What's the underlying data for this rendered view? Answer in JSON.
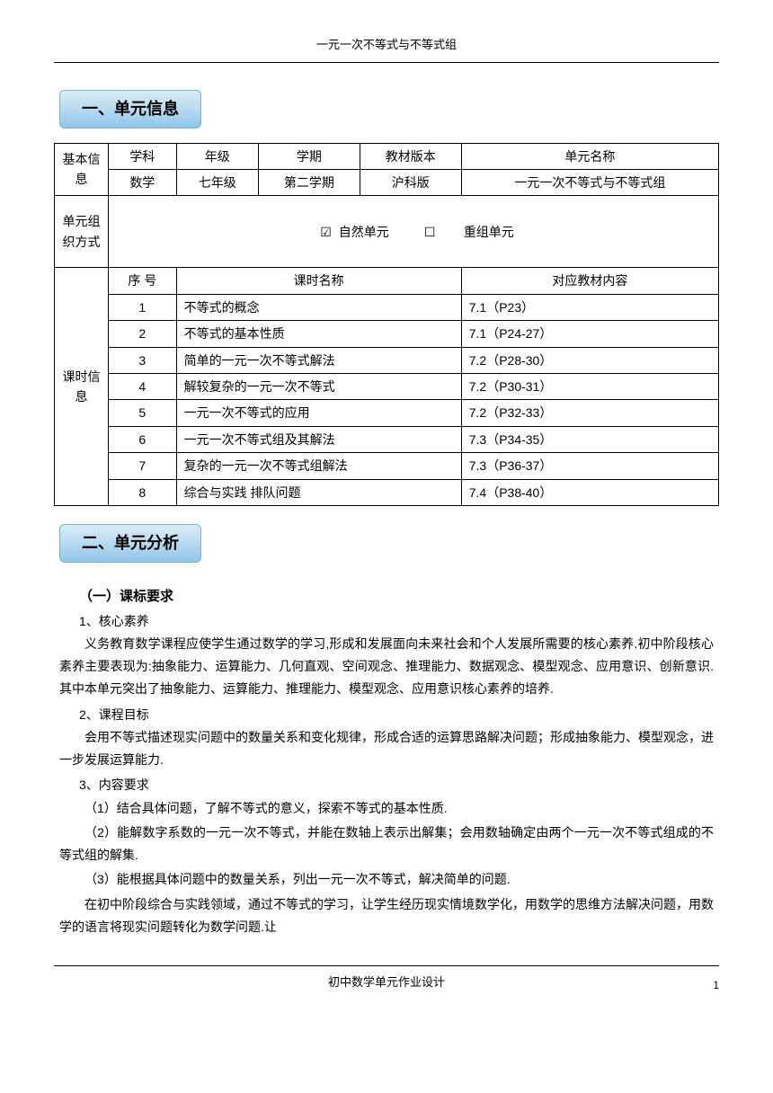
{
  "header": {
    "title": "一元一次不等式与不等式组"
  },
  "section1": {
    "badge": "一、单元信息",
    "basicInfo": {
      "label": "基本信息",
      "headers": [
        "学科",
        "年级",
        "学期",
        "教材版本",
        "单元名称"
      ],
      "values": [
        "数学",
        "七年级",
        "第二学期",
        "沪科版",
        "一元一次不等式与不等式组"
      ]
    },
    "orgMethod": {
      "label": "单元组织方式",
      "option1": "自然单元",
      "option2": "重组单元",
      "checked": "☑",
      "unchecked": "☐"
    },
    "lessonInfo": {
      "label": "课时信息",
      "headers": [
        "序 号",
        "课时名称",
        "对应教材内容"
      ],
      "rows": [
        [
          "1",
          "不等式的概念",
          "7.1（P23）"
        ],
        [
          "2",
          "不等式的基本性质",
          "7.1（P24-27）"
        ],
        [
          "3",
          "简单的一元一次不等式解法",
          "7.2（P28-30）"
        ],
        [
          "4",
          "解较复杂的一元一次不等式",
          "7.2（P30-31）"
        ],
        [
          "5",
          "一元一次不等式的应用",
          "7.2（P32-33）"
        ],
        [
          "6",
          "一元一次不等式组及其解法",
          "7.3（P34-35）"
        ],
        [
          "7",
          "复杂的一元一次不等式组解法",
          "7.3（P36-37）"
        ],
        [
          "8",
          "综合与实践  排队问题",
          "7.4（P38-40）"
        ]
      ]
    }
  },
  "section2": {
    "badge": "二、单元分析",
    "sub1_title": "（一）课标要求",
    "item1_label": "1、核心素养",
    "item1_text": "义务教育数学课程应使学生通过数学的学习,形成和发展面向未来社会和个人发展所需要的核心素养.初中阶段核心素养主要表现为:抽象能力、运算能力、几何直观、空间观念、推理能力、数据观念、模型观念、应用意识、创新意识.其中本单元突出了抽象能力、运算能力、推理能力、模型观念、应用意识核心素养的培养.",
    "item2_label": "2、课程目标",
    "item2_text": "会用不等式描述现实问题中的数量关系和变化规律，形成合适的运算思路解决问题；形成抽象能力、模型观念，进一步发展运算能力.",
    "item3_label": "3、内容要求",
    "item3_sub1": "（1）结合具体问题，了解不等式的意义，探索不等式的基本性质.",
    "item3_sub2": "（2）能解数字系数的一元一次不等式，并能在数轴上表示出解集；会用数轴确定由两个一元一次不等式组成的不等式组的解集.",
    "item3_sub3": "（3）能根据具体问题中的数量关系，列出一元一次不等式，解决简单的问题.",
    "item3_text": "在初中阶段综合与实践领域，通过不等式的学习，让学生经历现实情境数学化，用数学的思维方法解决问题，用数学的语言将现实问题转化为数学问题.让"
  },
  "footer": {
    "text": "初中数学单元作业设计",
    "page": "1"
  }
}
